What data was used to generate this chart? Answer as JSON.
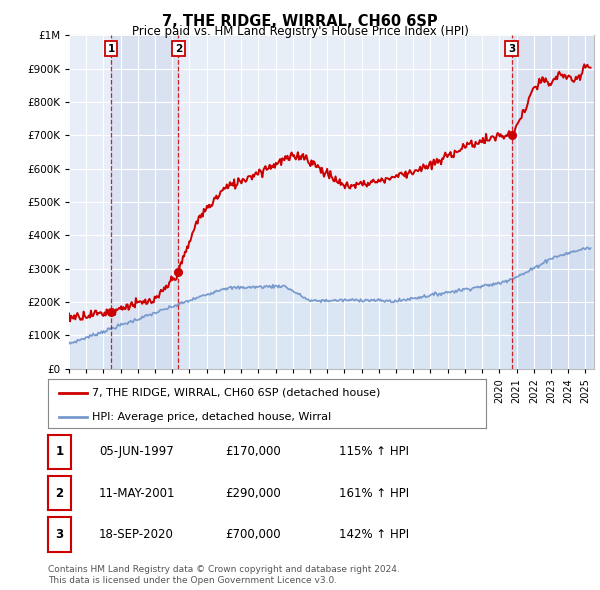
{
  "title": "7, THE RIDGE, WIRRAL, CH60 6SP",
  "subtitle": "Price paid vs. HM Land Registry's House Price Index (HPI)",
  "ylim": [
    0,
    1000000
  ],
  "xlim_start": 1995.0,
  "xlim_end": 2025.5,
  "background_color": "#ffffff",
  "plot_bg_color": "#e8eef8",
  "grid_color": "#ffffff",
  "sale_color": "#cc0000",
  "hpi_color": "#7799cc",
  "hpi_fill_color": "#ccddf0",
  "sale_points": [
    {
      "year": 1997.44,
      "value": 170000,
      "label": "1"
    },
    {
      "year": 2001.36,
      "value": 290000,
      "label": "2"
    },
    {
      "year": 2020.72,
      "value": 700000,
      "label": "3"
    }
  ],
  "vline_years": [
    1997.44,
    2001.36,
    2020.72
  ],
  "table_rows": [
    {
      "num": "1",
      "date": "05-JUN-1997",
      "price": "£170,000",
      "hpi": "115% ↑ HPI"
    },
    {
      "num": "2",
      "date": "11-MAY-2001",
      "price": "£290,000",
      "hpi": "161% ↑ HPI"
    },
    {
      "num": "3",
      "date": "18-SEP-2020",
      "price": "£700,000",
      "hpi": "142% ↑ HPI"
    }
  ],
  "footer_line1": "Contains HM Land Registry data © Crown copyright and database right 2024.",
  "footer_line2": "This data is licensed under the Open Government Licence v3.0.",
  "legend_sale_label": "7, THE RIDGE, WIRRAL, CH60 6SP (detached house)",
  "legend_hpi_label": "HPI: Average price, detached house, Wirral",
  "ytick_labels": [
    "£0",
    "£100K",
    "£200K",
    "£300K",
    "£400K",
    "£500K",
    "£600K",
    "£700K",
    "£800K",
    "£900K",
    "£1M"
  ],
  "ytick_values": [
    0,
    100000,
    200000,
    300000,
    400000,
    500000,
    600000,
    700000,
    800000,
    900000,
    1000000
  ]
}
